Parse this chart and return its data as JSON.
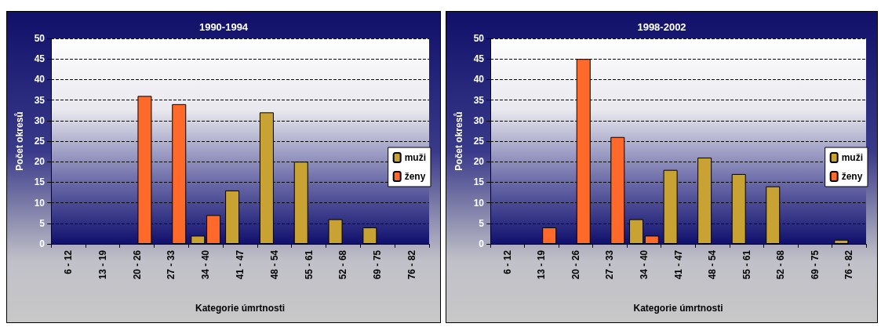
{
  "chart_data": [
    {
      "type": "bar",
      "title": "1990-1994",
      "xlabel": "Kategorie úmrtnosti",
      "ylabel": "Počet okresů",
      "categories": [
        "6 - 12",
        "13 - 19",
        "20 - 26",
        "27 - 33",
        "34 - 40",
        "41 - 47",
        "48 - 54",
        "55 - 61",
        "52 - 68",
        "69 - 75",
        "76 - 82"
      ],
      "series": [
        {
          "name": "muži",
          "color": "#c9a234",
          "values": [
            0,
            0,
            0,
            0,
            2,
            13,
            32,
            20,
            6,
            4,
            0
          ]
        },
        {
          "name": "ženy",
          "color": "#ff6a2a",
          "values": [
            0,
            0,
            36,
            34,
            7,
            0,
            0,
            0,
            0,
            0,
            0
          ]
        }
      ],
      "ylim": [
        0,
        50
      ],
      "yticks": [
        0,
        5,
        10,
        15,
        20,
        25,
        30,
        35,
        40,
        45,
        50
      ],
      "grid": "y",
      "legend": "right"
    },
    {
      "type": "bar",
      "title": "1998-2002",
      "xlabel": "Kategorie úmrtnosti",
      "ylabel": "Počet okresů",
      "categories": [
        "6 - 12",
        "13 - 19",
        "20 - 26",
        "27 - 33",
        "34 - 40",
        "41 - 47",
        "48 - 54",
        "55 - 61",
        "52 - 68",
        "69 - 75",
        "76 - 82"
      ],
      "series": [
        {
          "name": "muži",
          "color": "#c9a234",
          "values": [
            0,
            0,
            0,
            0,
            6,
            18,
            21,
            17,
            14,
            0,
            1
          ]
        },
        {
          "name": "ženy",
          "color": "#ff6a2a",
          "values": [
            0,
            4,
            45,
            26,
            2,
            0,
            0,
            0,
            0,
            0,
            0
          ]
        }
      ],
      "ylim": [
        0,
        50
      ],
      "yticks": [
        0,
        5,
        10,
        15,
        20,
        25,
        30,
        35,
        40,
        45,
        50
      ],
      "grid": "y",
      "legend": "right"
    }
  ]
}
